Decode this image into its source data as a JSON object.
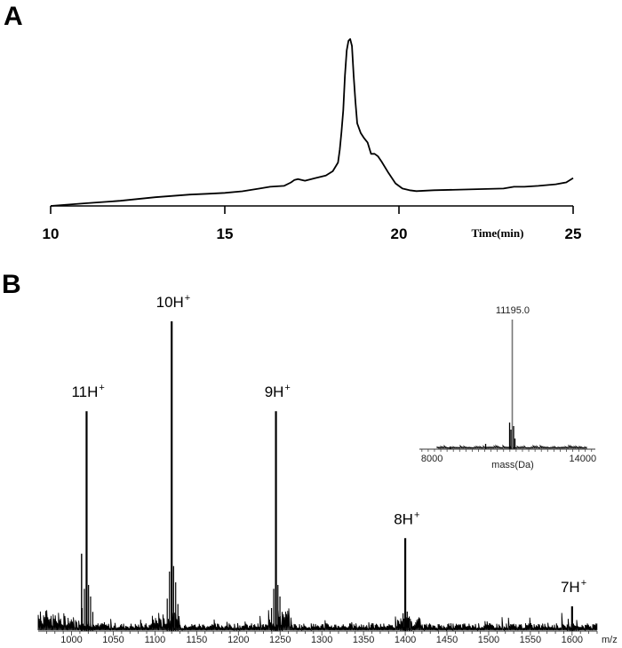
{
  "panel_a_label": "A",
  "panel_b_label": "B",
  "chart_data": [
    {
      "type": "line",
      "panel": "A",
      "xlabel": "Time(min)",
      "ylabel": "",
      "xlim": [
        10,
        25
      ],
      "ylim": [
        0,
        1
      ],
      "x_ticks": [
        10,
        15,
        20,
        25
      ],
      "grid": false,
      "series": [
        {
          "x": [
            10.0,
            11.0,
            12.0,
            13.0,
            14.0,
            14.5,
            15.0,
            15.5,
            16.0,
            16.3,
            16.7,
            16.9,
            17.0,
            17.1,
            17.3,
            17.6,
            17.9,
            18.1,
            18.25,
            18.3,
            18.35,
            18.4,
            18.45,
            18.5,
            18.55,
            18.6,
            18.65,
            18.7,
            18.75,
            18.8,
            18.9,
            19.0,
            19.1,
            19.2,
            19.3,
            19.4,
            19.5,
            19.7,
            19.9,
            20.1,
            20.3,
            20.5,
            21.0,
            22.0,
            23.0,
            23.3,
            23.6,
            24.0,
            24.5,
            24.8,
            25.0
          ],
          "y": [
            0.0,
            0.016,
            0.031,
            0.052,
            0.068,
            0.073,
            0.078,
            0.088,
            0.104,
            0.115,
            0.12,
            0.141,
            0.156,
            0.161,
            0.151,
            0.167,
            0.182,
            0.208,
            0.26,
            0.338,
            0.443,
            0.573,
            0.781,
            0.932,
            0.99,
            1.0,
            0.958,
            0.781,
            0.625,
            0.495,
            0.438,
            0.406,
            0.38,
            0.312,
            0.312,
            0.297,
            0.266,
            0.198,
            0.135,
            0.104,
            0.094,
            0.089,
            0.094,
            0.099,
            0.104,
            0.115,
            0.115,
            0.12,
            0.13,
            0.141,
            0.167
          ]
        }
      ]
    },
    {
      "type": "bar",
      "panel": "B",
      "xlabel": "m/z",
      "ylabel": "",
      "xlim": [
        960,
        1630
      ],
      "ylim": [
        0,
        1
      ],
      "x_ticks": [
        1000,
        1050,
        1100,
        1150,
        1200,
        1250,
        1300,
        1350,
        1400,
        1450,
        1500,
        1550,
        1600
      ],
      "grid": false,
      "peaks": [
        {
          "mz": 1018,
          "intensity": 0.71,
          "label": "11H",
          "charge": "+"
        },
        {
          "mz": 1120,
          "intensity": 1.0,
          "label": "10H",
          "charge": "+"
        },
        {
          "mz": 1245,
          "intensity": 0.71,
          "label": "9H",
          "charge": "+"
        },
        {
          "mz": 1400,
          "intensity": 0.3,
          "label": "8H",
          "charge": "+"
        },
        {
          "mz": 1600,
          "intensity": 0.08,
          "label": "7H",
          "charge": "+"
        }
      ],
      "inset": {
        "type": "bar",
        "xlabel": "mass(Da)",
        "xlim": [
          7500,
          14500
        ],
        "x_ticks": [
          8000,
          14000
        ],
        "peak_mass": 11195.0,
        "peak_label": "11195.0"
      }
    }
  ]
}
